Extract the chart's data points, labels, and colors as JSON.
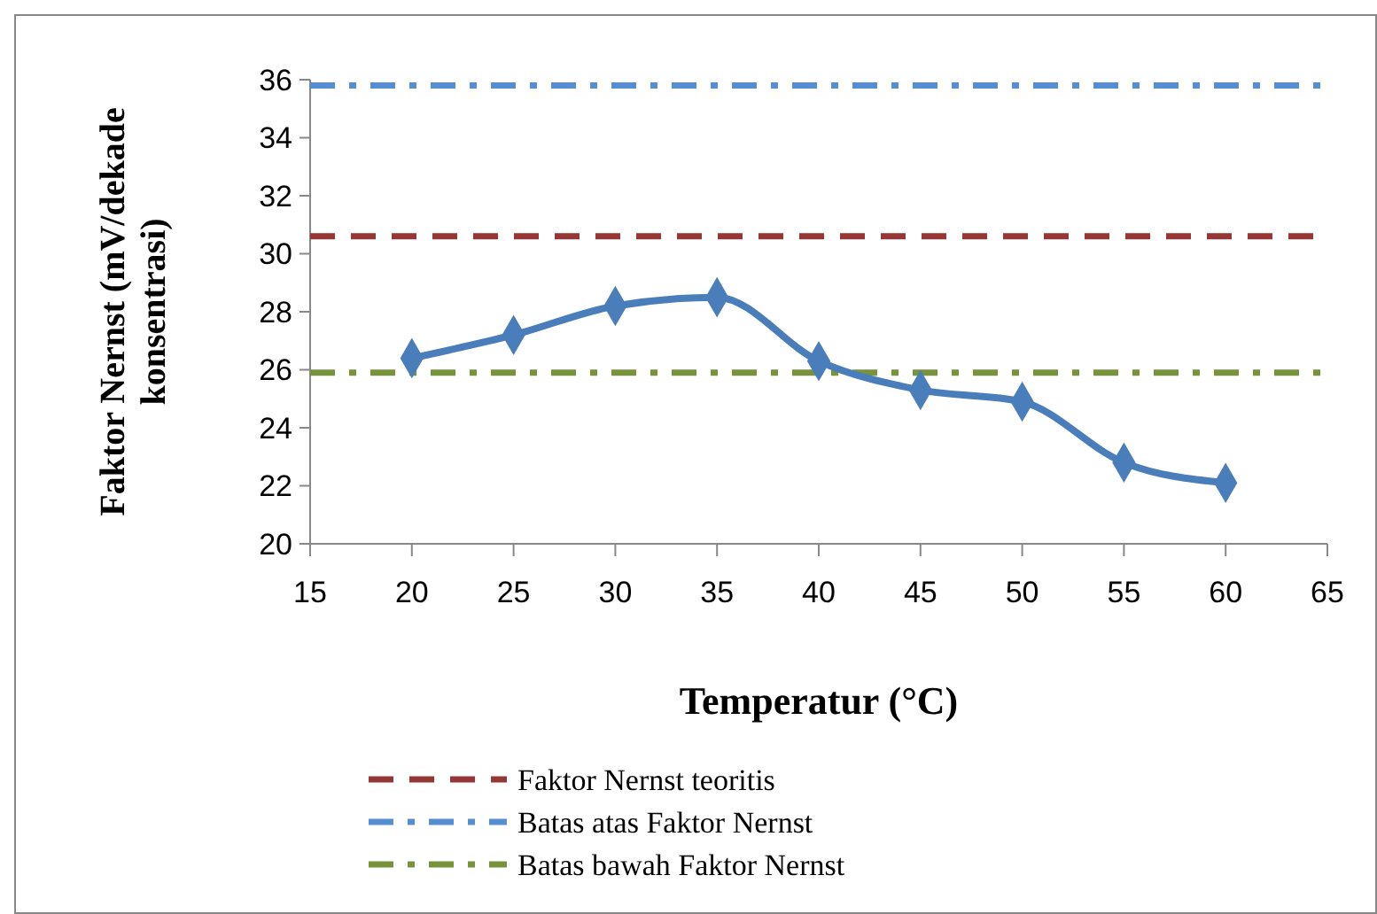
{
  "chart_data": {
    "type": "line",
    "xlabel": "Temperatur (°C)",
    "ylabel": "Faktor Nernst (mV/dekade konsentrasi)",
    "x": [
      20,
      25,
      30,
      35,
      40,
      45,
      50,
      55,
      60
    ],
    "series": [
      {
        "color": "#4a7ebb",
        "values": [
          26.4,
          27.2,
          28.2,
          28.5,
          26.3,
          25.3,
          24.9,
          22.8,
          22.1
        ]
      }
    ],
    "xlim": [
      15,
      65
    ],
    "xticks": [
      15,
      20,
      25,
      30,
      35,
      40,
      45,
      50,
      55,
      60,
      65
    ],
    "ylim": [
      20,
      36
    ],
    "yticks": [
      20,
      22,
      24,
      26,
      28,
      30,
      32,
      34,
      36
    ],
    "marker": "diamond",
    "line_style": "solid",
    "grid": false,
    "legend": "bottom",
    "ref_lines": [
      {
        "axis": "y",
        "value": 30.6,
        "label": "Faktor Nernst teoritis",
        "color": "#953735",
        "line_style": "dashed"
      },
      {
        "axis": "y",
        "value": 35.8,
        "label": "Batas atas Faktor Nernst",
        "color": "#558ed5",
        "line_style": "dashdot"
      },
      {
        "axis": "y",
        "value": 25.9,
        "label": "Batas bawah Faktor Nernst",
        "color": "#77933c",
        "line_style": "dashdot"
      }
    ]
  }
}
